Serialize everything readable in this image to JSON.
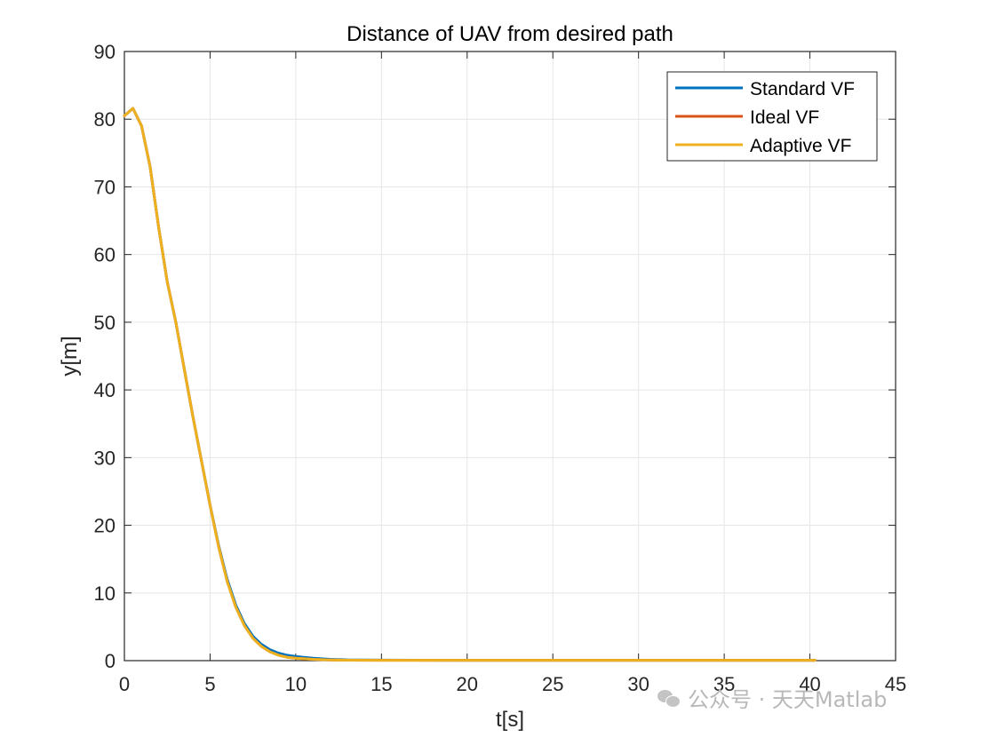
{
  "chart_data": {
    "type": "line",
    "title": "Distance of UAV from desired path",
    "xlabel": "t[s]",
    "ylabel": "y[m]",
    "xlim": [
      0,
      45
    ],
    "ylim": [
      0,
      90
    ],
    "xticks": [
      0,
      5,
      10,
      15,
      20,
      25,
      30,
      35,
      40,
      45
    ],
    "yticks": [
      0,
      10,
      20,
      30,
      40,
      50,
      60,
      70,
      80,
      90
    ],
    "grid": true,
    "legend_position": "top-right",
    "series": [
      {
        "name": "Standard VF",
        "color": "#0072BD",
        "x": [
          0,
          0.5,
          1,
          1.5,
          2,
          2.5,
          3,
          3.5,
          4,
          4.5,
          5,
          5.5,
          6,
          6.5,
          7,
          7.5,
          8,
          8.5,
          9,
          9.5,
          10,
          11,
          12,
          13,
          15,
          20,
          25,
          30,
          35,
          40.3
        ],
        "y": [
          80.5,
          81.6,
          79,
          73,
          64,
          56,
          50,
          43,
          36,
          29.5,
          23,
          17,
          12,
          8.2,
          5.5,
          3.6,
          2.4,
          1.6,
          1.1,
          0.8,
          0.6,
          0.35,
          0.2,
          0.12,
          0.08,
          0.05,
          0.05,
          0.05,
          0.05,
          0.05
        ]
      },
      {
        "name": "Ideal VF",
        "color": "#D95319",
        "x": [
          0,
          0.5,
          1,
          1.5,
          2,
          2.5,
          3,
          3.5,
          4,
          4.5,
          5,
          5.5,
          6,
          6.5,
          7,
          7.5,
          8,
          8.5,
          9,
          9.5,
          10,
          11,
          12,
          13,
          15,
          20,
          25,
          30,
          35,
          40.3
        ],
        "y": [
          80.5,
          81.6,
          79,
          73,
          64,
          56,
          50,
          43,
          36,
          29.5,
          23,
          16.8,
          11.7,
          7.9,
          5.2,
          3.3,
          2.1,
          1.3,
          0.8,
          0.5,
          0.35,
          0.2,
          0.1,
          0.07,
          0.05,
          0.05,
          0.05,
          0.05,
          0.05,
          0.05
        ]
      },
      {
        "name": "Adaptive VF",
        "color": "#EDB120",
        "x": [
          0,
          0.5,
          1,
          1.5,
          2,
          2.5,
          3,
          3.5,
          4,
          4.5,
          5,
          5.5,
          6,
          6.5,
          7,
          7.5,
          8,
          8.5,
          9,
          9.5,
          10,
          11,
          12,
          13,
          15,
          20,
          25,
          30,
          35,
          40.3
        ],
        "y": [
          80.5,
          81.6,
          79,
          73,
          64,
          56,
          50,
          43,
          36,
          29.5,
          23,
          16.8,
          11.7,
          7.9,
          5.2,
          3.3,
          2.1,
          1.3,
          0.8,
          0.5,
          0.35,
          0.2,
          0.1,
          0.07,
          0.05,
          0.05,
          0.05,
          0.05,
          0.05,
          0.05
        ]
      }
    ]
  },
  "watermark": {
    "text": "公众号 · 天天Matlab",
    "icon": "wechat-icon"
  }
}
